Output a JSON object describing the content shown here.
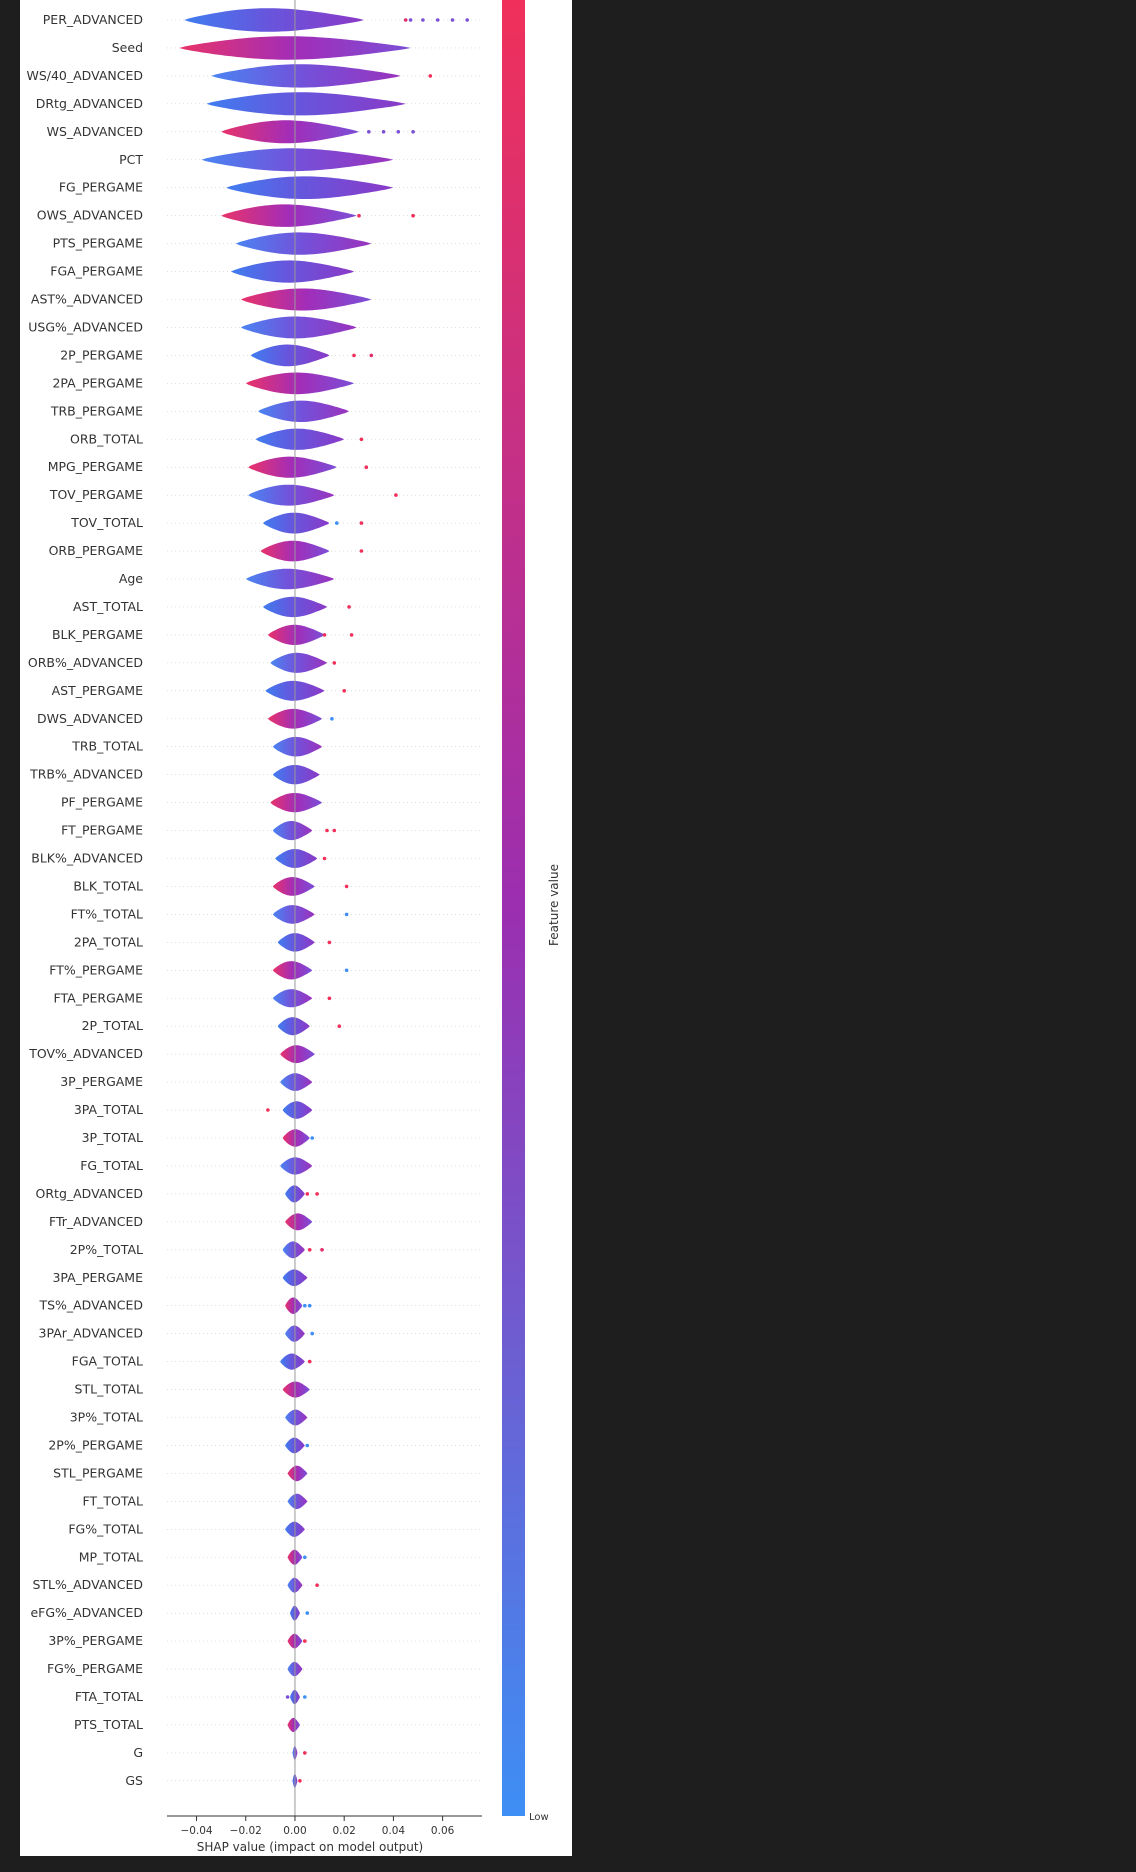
{
  "chart_data": {
    "type": "violin",
    "xlabel": "SHAP value (impact on model output)",
    "xlim": [
      -0.052,
      0.076
    ],
    "x_ticks": [
      -0.04,
      -0.02,
      0.0,
      0.02,
      0.04,
      0.06
    ],
    "x_tick_labels": [
      "−0.04",
      "−0.02",
      "0.00",
      "0.02",
      "0.04",
      "0.06"
    ],
    "colorbar": {
      "label": "Feature value",
      "low_label": "Low",
      "low_color": "#3d8ff5",
      "high_color": "#f0305a"
    },
    "features": [
      {
        "name": "PER_ADVANCED",
        "min": -0.045,
        "max": 0.028,
        "outliers": [
          {
            "x": 0.045,
            "c": "#e02d6e"
          },
          {
            "x": 0.047,
            "c": "#7b4fd6"
          },
          {
            "x": 0.052,
            "c": "#7b4fd6"
          },
          {
            "x": 0.058,
            "c": "#7b4fd6"
          },
          {
            "x": 0.064,
            "c": "#7b4fd6"
          },
          {
            "x": 0.07,
            "c": "#7b4fd6"
          }
        ]
      },
      {
        "name": "Seed",
        "min": -0.047,
        "max": 0.047,
        "outliers": []
      },
      {
        "name": "WS/40_ADVANCED",
        "min": -0.034,
        "max": 0.043,
        "outliers": [
          {
            "x": 0.055,
            "c": "#f0305a"
          }
        ]
      },
      {
        "name": "DRtg_ADVANCED",
        "min": -0.036,
        "max": 0.045,
        "outliers": []
      },
      {
        "name": "WS_ADVANCED",
        "min": -0.03,
        "max": 0.026,
        "outliers": [
          {
            "x": 0.03,
            "c": "#7b4fd6"
          },
          {
            "x": 0.036,
            "c": "#7b4fd6"
          },
          {
            "x": 0.042,
            "c": "#7b4fd6"
          },
          {
            "x": 0.048,
            "c": "#7b4fd6"
          }
        ]
      },
      {
        "name": "PCT",
        "min": -0.038,
        "max": 0.04,
        "outliers": []
      },
      {
        "name": "FG_PERGAME",
        "min": -0.028,
        "max": 0.04,
        "outliers": []
      },
      {
        "name": "OWS_ADVANCED",
        "min": -0.03,
        "max": 0.025,
        "outliers": [
          {
            "x": 0.026,
            "c": "#f0305a"
          },
          {
            "x": 0.048,
            "c": "#f0305a"
          }
        ]
      },
      {
        "name": "PTS_PERGAME",
        "min": -0.024,
        "max": 0.031,
        "outliers": []
      },
      {
        "name": "FGA_PERGAME",
        "min": -0.026,
        "max": 0.024,
        "outliers": []
      },
      {
        "name": "AST%_ADVANCED",
        "min": -0.022,
        "max": 0.031,
        "outliers": []
      },
      {
        "name": "USG%_ADVANCED",
        "min": -0.022,
        "max": 0.025,
        "outliers": []
      },
      {
        "name": "2P_PERGAME",
        "min": -0.018,
        "max": 0.014,
        "outliers": [
          {
            "x": 0.024,
            "c": "#f0305a"
          },
          {
            "x": 0.031,
            "c": "#e02d6e"
          }
        ]
      },
      {
        "name": "2PA_PERGAME",
        "min": -0.02,
        "max": 0.024,
        "outliers": []
      },
      {
        "name": "TRB_PERGAME",
        "min": -0.015,
        "max": 0.022,
        "outliers": []
      },
      {
        "name": "ORB_TOTAL",
        "min": -0.016,
        "max": 0.02,
        "outliers": [
          {
            "x": 0.027,
            "c": "#f0305a"
          }
        ]
      },
      {
        "name": "MPG_PERGAME",
        "min": -0.019,
        "max": 0.017,
        "outliers": [
          {
            "x": 0.029,
            "c": "#f0305a"
          }
        ]
      },
      {
        "name": "TOV_PERGAME",
        "min": -0.019,
        "max": 0.016,
        "outliers": [
          {
            "x": 0.041,
            "c": "#f0305a"
          }
        ]
      },
      {
        "name": "TOV_TOTAL",
        "min": -0.013,
        "max": 0.014,
        "outliers": [
          {
            "x": 0.017,
            "c": "#3d8ff5"
          },
          {
            "x": 0.027,
            "c": "#f0305a"
          }
        ]
      },
      {
        "name": "ORB_PERGAME",
        "min": -0.014,
        "max": 0.014,
        "outliers": [
          {
            "x": 0.027,
            "c": "#f0305a"
          }
        ]
      },
      {
        "name": "Age",
        "min": -0.02,
        "max": 0.016,
        "outliers": []
      },
      {
        "name": "AST_TOTAL",
        "min": -0.013,
        "max": 0.013,
        "outliers": [
          {
            "x": 0.022,
            "c": "#f0305a"
          }
        ]
      },
      {
        "name": "BLK_PERGAME",
        "min": -0.011,
        "max": 0.012,
        "outliers": [
          {
            "x": 0.012,
            "c": "#f0305a"
          },
          {
            "x": 0.023,
            "c": "#f0305a"
          }
        ]
      },
      {
        "name": "ORB%_ADVANCED",
        "min": -0.01,
        "max": 0.013,
        "outliers": [
          {
            "x": 0.016,
            "c": "#f0305a"
          }
        ]
      },
      {
        "name": "AST_PERGAME",
        "min": -0.012,
        "max": 0.012,
        "outliers": [
          {
            "x": 0.02,
            "c": "#f0305a"
          }
        ]
      },
      {
        "name": "DWS_ADVANCED",
        "min": -0.011,
        "max": 0.011,
        "outliers": [
          {
            "x": 0.015,
            "c": "#3d8ff5"
          }
        ]
      },
      {
        "name": "TRB_TOTAL",
        "min": -0.009,
        "max": 0.011,
        "outliers": []
      },
      {
        "name": "TRB%_ADVANCED",
        "min": -0.009,
        "max": 0.01,
        "outliers": []
      },
      {
        "name": "PF_PERGAME",
        "min": -0.01,
        "max": 0.011,
        "outliers": []
      },
      {
        "name": "FT_PERGAME",
        "min": -0.009,
        "max": 0.007,
        "outliers": [
          {
            "x": 0.013,
            "c": "#f0305a"
          },
          {
            "x": 0.016,
            "c": "#f0305a"
          }
        ]
      },
      {
        "name": "BLK%_ADVANCED",
        "min": -0.008,
        "max": 0.009,
        "outliers": [
          {
            "x": 0.012,
            "c": "#f0305a"
          }
        ]
      },
      {
        "name": "BLK_TOTAL",
        "min": -0.009,
        "max": 0.008,
        "outliers": [
          {
            "x": 0.021,
            "c": "#f0305a"
          }
        ]
      },
      {
        "name": "FT%_TOTAL",
        "min": -0.009,
        "max": 0.008,
        "outliers": [
          {
            "x": 0.021,
            "c": "#3d8ff5"
          }
        ]
      },
      {
        "name": "2PA_TOTAL",
        "min": -0.007,
        "max": 0.008,
        "outliers": [
          {
            "x": 0.014,
            "c": "#f0305a"
          }
        ]
      },
      {
        "name": "FT%_PERGAME",
        "min": -0.009,
        "max": 0.007,
        "outliers": [
          {
            "x": 0.021,
            "c": "#3d8ff5"
          }
        ]
      },
      {
        "name": "FTA_PERGAME",
        "min": -0.009,
        "max": 0.007,
        "outliers": [
          {
            "x": 0.014,
            "c": "#f0305a"
          }
        ]
      },
      {
        "name": "2P_TOTAL",
        "min": -0.007,
        "max": 0.006,
        "outliers": [
          {
            "x": 0.018,
            "c": "#f0305a"
          }
        ]
      },
      {
        "name": "TOV%_ADVANCED",
        "min": -0.006,
        "max": 0.008,
        "outliers": []
      },
      {
        "name": "3P_PERGAME",
        "min": -0.006,
        "max": 0.007,
        "outliers": []
      },
      {
        "name": "3PA_TOTAL",
        "min": -0.005,
        "max": 0.007,
        "outliers": [
          {
            "x": -0.011,
            "c": "#f0305a"
          }
        ]
      },
      {
        "name": "3P_TOTAL",
        "min": -0.005,
        "max": 0.006,
        "outliers": [
          {
            "x": 0.007,
            "c": "#3d8ff5"
          }
        ]
      },
      {
        "name": "FG_TOTAL",
        "min": -0.006,
        "max": 0.007,
        "outliers": []
      },
      {
        "name": "ORtg_ADVANCED",
        "min": -0.004,
        "max": 0.004,
        "outliers": [
          {
            "x": 0.005,
            "c": "#f0305a"
          },
          {
            "x": 0.009,
            "c": "#f0305a"
          }
        ]
      },
      {
        "name": "FTr_ADVANCED",
        "min": -0.004,
        "max": 0.007,
        "outliers": []
      },
      {
        "name": "2P%_TOTAL",
        "min": -0.005,
        "max": 0.004,
        "outliers": [
          {
            "x": 0.006,
            "c": "#f0305a"
          },
          {
            "x": 0.011,
            "c": "#e02d6e"
          }
        ]
      },
      {
        "name": "3PA_PERGAME",
        "min": -0.005,
        "max": 0.005,
        "outliers": []
      },
      {
        "name": "TS%_ADVANCED",
        "min": -0.004,
        "max": 0.003,
        "outliers": [
          {
            "x": 0.004,
            "c": "#3d8ff5"
          },
          {
            "x": 0.006,
            "c": "#3d8ff5"
          }
        ]
      },
      {
        "name": "3PAr_ADVANCED",
        "min": -0.004,
        "max": 0.004,
        "outliers": [
          {
            "x": 0.007,
            "c": "#3d8ff5"
          }
        ]
      },
      {
        "name": "FGA_TOTAL",
        "min": -0.006,
        "max": 0.004,
        "outliers": [
          {
            "x": 0.006,
            "c": "#f0305a"
          }
        ]
      },
      {
        "name": "STL_TOTAL",
        "min": -0.005,
        "max": 0.006,
        "outliers": []
      },
      {
        "name": "3P%_TOTAL",
        "min": -0.004,
        "max": 0.005,
        "outliers": []
      },
      {
        "name": "2P%_PERGAME",
        "min": -0.004,
        "max": 0.004,
        "outliers": [
          {
            "x": 0.005,
            "c": "#3d8ff5"
          }
        ]
      },
      {
        "name": "STL_PERGAME",
        "min": -0.003,
        "max": 0.005,
        "outliers": []
      },
      {
        "name": "FT_TOTAL",
        "min": -0.003,
        "max": 0.005,
        "outliers": []
      },
      {
        "name": "FG%_TOTAL",
        "min": -0.004,
        "max": 0.004,
        "outliers": []
      },
      {
        "name": "MP_TOTAL",
        "min": -0.003,
        "max": 0.003,
        "outliers": [
          {
            "x": 0.004,
            "c": "#3d8ff5"
          }
        ]
      },
      {
        "name": "STL%_ADVANCED",
        "min": -0.003,
        "max": 0.003,
        "outliers": [
          {
            "x": 0.009,
            "c": "#f0305a"
          }
        ]
      },
      {
        "name": "eFG%_ADVANCED",
        "min": -0.002,
        "max": 0.002,
        "outliers": [
          {
            "x": 0.005,
            "c": "#3d8ff5"
          }
        ]
      },
      {
        "name": "3P%_PERGAME",
        "min": -0.003,
        "max": 0.003,
        "outliers": [
          {
            "x": 0.004,
            "c": "#f0305a"
          }
        ]
      },
      {
        "name": "FG%_PERGAME",
        "min": -0.003,
        "max": 0.003,
        "outliers": []
      },
      {
        "name": "FTA_TOTAL",
        "min": -0.002,
        "max": 0.002,
        "outliers": [
          {
            "x": -0.003,
            "c": "#7b4fd6"
          },
          {
            "x": 0.004,
            "c": "#3d8ff5"
          }
        ]
      },
      {
        "name": "PTS_TOTAL",
        "min": -0.003,
        "max": 0.002,
        "outliers": []
      },
      {
        "name": "G",
        "min": -0.001,
        "max": 0.001,
        "outliers": [
          {
            "x": 0.004,
            "c": "#f0305a"
          }
        ]
      },
      {
        "name": "GS",
        "min": -0.001,
        "max": 0.001,
        "outliers": [
          {
            "x": 0.002,
            "c": "#f0305a"
          }
        ]
      }
    ]
  }
}
